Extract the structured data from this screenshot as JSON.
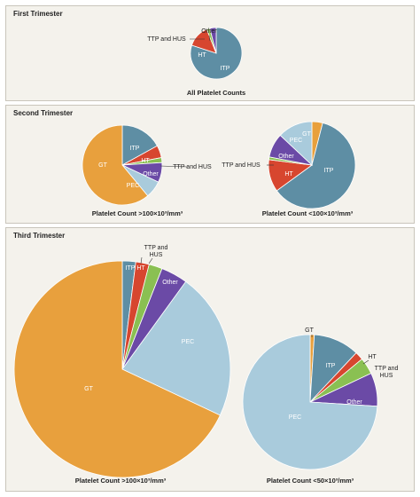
{
  "panels": [
    {
      "key": "first",
      "title": "First Trimester"
    },
    {
      "key": "second",
      "title": "Second Trimester"
    },
    {
      "key": "third",
      "title": "Third Trimester"
    }
  ],
  "colors": {
    "ITP": "#5e8ea4",
    "HT": "#d7462f",
    "TTP and HUS": "#8ac052",
    "Other": "#6b4aa6",
    "PEC": "#a9cbdc",
    "GT": "#e8a03d"
  },
  "chart_data": [
    {
      "type": "pie",
      "panel": "first",
      "caption": "All Platelet Counts",
      "slices": [
        {
          "label": "ITP",
          "value": 80
        },
        {
          "label": "HT",
          "value": 14
        },
        {
          "label": "TTP and HUS",
          "value": 2
        },
        {
          "label": "Other",
          "value": 4
        }
      ]
    },
    {
      "type": "pie",
      "panel": "second",
      "caption": "Platelet Count >100×10³/mm³",
      "slices": [
        {
          "label": "ITP",
          "value": 17
        },
        {
          "label": "HT",
          "value": 5
        },
        {
          "label": "TTP and HUS",
          "value": 2
        },
        {
          "label": "Other",
          "value": 8
        },
        {
          "label": "PEC",
          "value": 7
        },
        {
          "label": "GT",
          "value": 61
        }
      ]
    },
    {
      "type": "pie",
      "panel": "second",
      "caption": "Platelet Count <100×10³/mm³",
      "slices": [
        {
          "label": "GT",
          "value": 4
        },
        {
          "label": "ITP",
          "value": 61
        },
        {
          "label": "HT",
          "value": 12
        },
        {
          "label": "TTP and HUS",
          "value": 1
        },
        {
          "label": "Other",
          "value": 9
        },
        {
          "label": "PEC",
          "value": 13
        }
      ]
    },
    {
      "type": "pie",
      "panel": "third",
      "caption": "Platelet Count >100×10³/mm³",
      "slices": [
        {
          "label": "ITP",
          "value": 2
        },
        {
          "label": "HT",
          "value": 2
        },
        {
          "label": "TTP and HUS",
          "value": 2
        },
        {
          "label": "Other",
          "value": 4
        },
        {
          "label": "PEC",
          "value": 22
        },
        {
          "label": "GT",
          "value": 68
        }
      ]
    },
    {
      "type": "pie",
      "panel": "third",
      "caption": "Platelet Count <50×10³/mm³",
      "slices": [
        {
          "label": "GT",
          "value": 1
        },
        {
          "label": "ITP",
          "value": 11
        },
        {
          "label": "HT",
          "value": 2
        },
        {
          "label": "TTP and HUS",
          "value": 4
        },
        {
          "label": "Other",
          "value": 8
        },
        {
          "label": "PEC",
          "value": 74
        }
      ]
    }
  ]
}
